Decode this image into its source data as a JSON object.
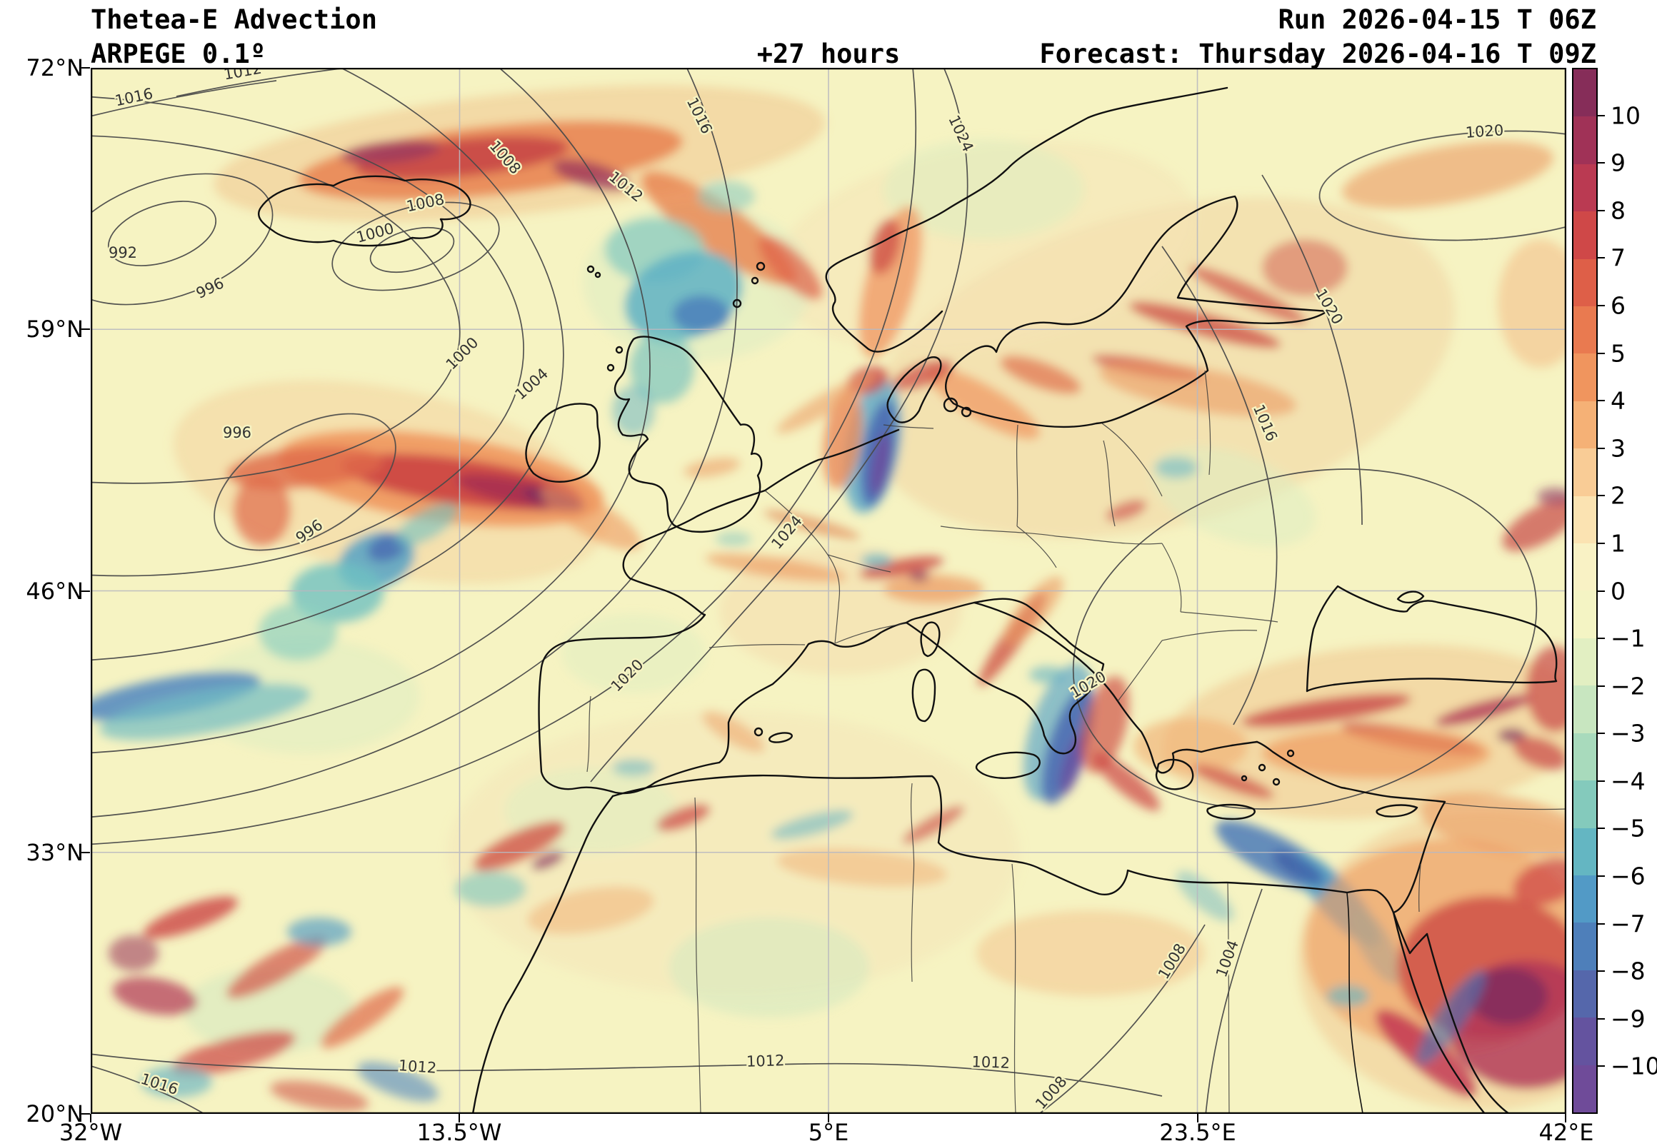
{
  "header": {
    "title": "Thetea-E Advection",
    "model": "ARPEGE 0.1º",
    "lead_time": "+27 hours",
    "run": "Run 2026-04-15 T 06Z",
    "forecast": "Forecast: Thursday 2026-04-16 T 09Z"
  },
  "axes": {
    "lat_ticks": [
      "72°N",
      "59°N",
      "46°N",
      "33°N",
      "20°N"
    ],
    "lon_ticks": [
      "32°W",
      "13.5°W",
      "5°E",
      "23.5°E",
      "42°E"
    ]
  },
  "colorbar": {
    "ticks": [
      "10",
      "9",
      "8",
      "7",
      "6",
      "5",
      "4",
      "3",
      "2",
      "1",
      "0",
      "−1",
      "−2",
      "−3",
      "−4",
      "−5",
      "−6",
      "−7",
      "−8",
      "−9",
      "−10"
    ],
    "colors": [
      "#862d59",
      "#a03257",
      "#ba3a52",
      "#cf4848",
      "#de5f48",
      "#e97a50",
      "#f0955e",
      "#f5b176",
      "#f9cc96",
      "#fbe3b2",
      "#f9f2c5",
      "#f4f4c4",
      "#e2efc2",
      "#c8e6c0",
      "#a8dabc",
      "#84cabc",
      "#64b6c2",
      "#529ac6",
      "#4e7fba",
      "#5567ab",
      "#64539f",
      "#6f4b99"
    ]
  },
  "plot": {
    "background": "#f6f3c2",
    "grid_color": "#b9b9c0",
    "coast_color": "#101010",
    "border_color": "#3a3a3a",
    "contour_color": "#4a4a4a",
    "frame_color": "#000000"
  },
  "contour_labels": [
    {
      "text": "1016"
    },
    {
      "text": "1012"
    },
    {
      "text": "1016"
    },
    {
      "text": "1008"
    },
    {
      "text": "1012"
    },
    {
      "text": "1024"
    },
    {
      "text": "1000"
    },
    {
      "text": "1008"
    },
    {
      "text": "992"
    },
    {
      "text": "996"
    },
    {
      "text": "1000"
    },
    {
      "text": "1004"
    },
    {
      "text": "996"
    },
    {
      "text": "996"
    },
    {
      "text": "1024"
    },
    {
      "text": "1020"
    },
    {
      "text": "1020"
    },
    {
      "text": "1016"
    },
    {
      "text": "1020"
    },
    {
      "text": "1020"
    },
    {
      "text": "1012"
    },
    {
      "text": "1016"
    },
    {
      "text": "1012"
    },
    {
      "text": "1012"
    },
    {
      "text": "1008"
    },
    {
      "text": "1008"
    },
    {
      "text": "1004"
    }
  ],
  "chart_data": {
    "type": "heatmap",
    "title": "Thetea-E Advection",
    "model": "ARPEGE 0.1º",
    "lead_hours": 27,
    "x_ticks": [
      "32°W",
      "13.5°W",
      "5°E",
      "23.5°E",
      "42°E"
    ],
    "y_ticks": [
      "72°N",
      "59°N",
      "46°N",
      "33°N",
      "20°N"
    ],
    "colorbar_ticks": [
      10,
      9,
      8,
      7,
      6,
      5,
      4,
      3,
      2,
      1,
      0,
      -1,
      -2,
      -3,
      -4,
      -5,
      -6,
      -7,
      -8,
      -9,
      -10
    ],
    "isobar_values": [
      992,
      996,
      1000,
      1004,
      1008,
      1012,
      1016,
      1020,
      1024
    ]
  }
}
